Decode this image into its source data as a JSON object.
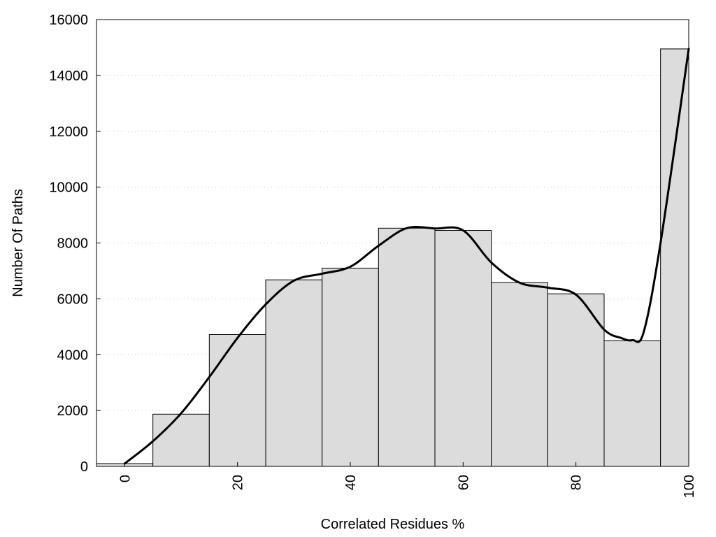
{
  "chart_data": {
    "type": "bar",
    "xlabel": "Correlated Residues %",
    "ylabel": "Number Of Paths",
    "xlim": [
      -5,
      100
    ],
    "ylim": [
      0,
      16000
    ],
    "x_ticks": [
      0,
      20,
      40,
      60,
      80,
      100
    ],
    "y_ticks": [
      0,
      2000,
      4000,
      6000,
      8000,
      10000,
      12000,
      14000,
      16000
    ],
    "grid": "horizontal dotted",
    "legend": "none",
    "bars": {
      "centers": [
        0,
        10,
        20,
        30,
        40,
        50,
        60,
        70,
        80,
        90,
        100
      ],
      "width": 10,
      "values": [
        100,
        1870,
        4720,
        6680,
        7100,
        8530,
        8450,
        6580,
        6180,
        4500,
        14950
      ]
    },
    "smooth_curve": {
      "x": [
        0,
        5,
        10,
        15,
        20,
        25,
        30,
        35,
        40,
        45,
        50,
        55,
        60,
        65,
        70,
        75,
        80,
        85,
        88,
        90,
        92,
        95,
        100
      ],
      "y": [
        100,
        900,
        1900,
        3200,
        4600,
        5800,
        6650,
        6900,
        7150,
        7900,
        8530,
        8520,
        8450,
        7300,
        6580,
        6400,
        6150,
        4900,
        4600,
        4520,
        4800,
        8000,
        14950
      ]
    },
    "colors": {
      "bar_fill": "#dcdcdc",
      "bar_stroke": "#000000",
      "curve": "#000000"
    }
  }
}
